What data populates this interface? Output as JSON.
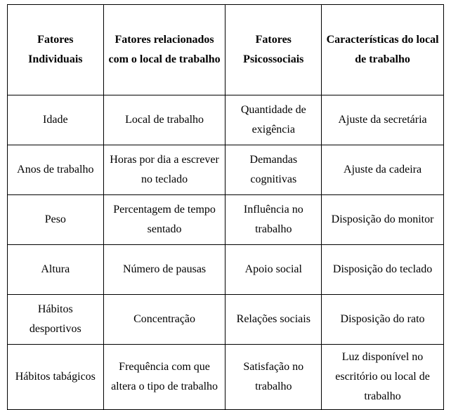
{
  "table": {
    "columns": [
      "Fatores Individuais",
      "Fatores relacionados com o local de trabalho",
      "Fatores Psicossociais",
      "Características do local de trabalho"
    ],
    "rows": [
      [
        "Idade",
        "Local de trabalho",
        "Quantidade de exigência",
        "Ajuste da secretária"
      ],
      [
        "Anos de trabalho",
        "Horas por dia a escrever no teclado",
        "Demandas cognitivas",
        "Ajuste da cadeira"
      ],
      [
        "Peso",
        "Percentagem de tempo sentado",
        "Influência no trabalho",
        "Disposição do monitor"
      ],
      [
        "Altura",
        "Número de pausas",
        "Apoio social",
        "Disposição do teclado"
      ],
      [
        "Hábitos desportivos",
        "Concentração",
        "Relações sociais",
        "Disposição do rato"
      ],
      [
        "Hábitos tabágicos",
        "Frequência com que altera o tipo de trabalho",
        "Satisfação no trabalho",
        "Luz disponível no escritório ou local de trabalho"
      ]
    ],
    "column_widths_pct": [
      22,
      28,
      22,
      28
    ],
    "border_color": "#000000",
    "background_color": "#ffffff",
    "text_color": "#000000",
    "header_font_weight": "bold",
    "body_font_weight": "normal",
    "font_family": "Times New Roman",
    "font_size_pt": 12,
    "line_height": 1.75
  }
}
